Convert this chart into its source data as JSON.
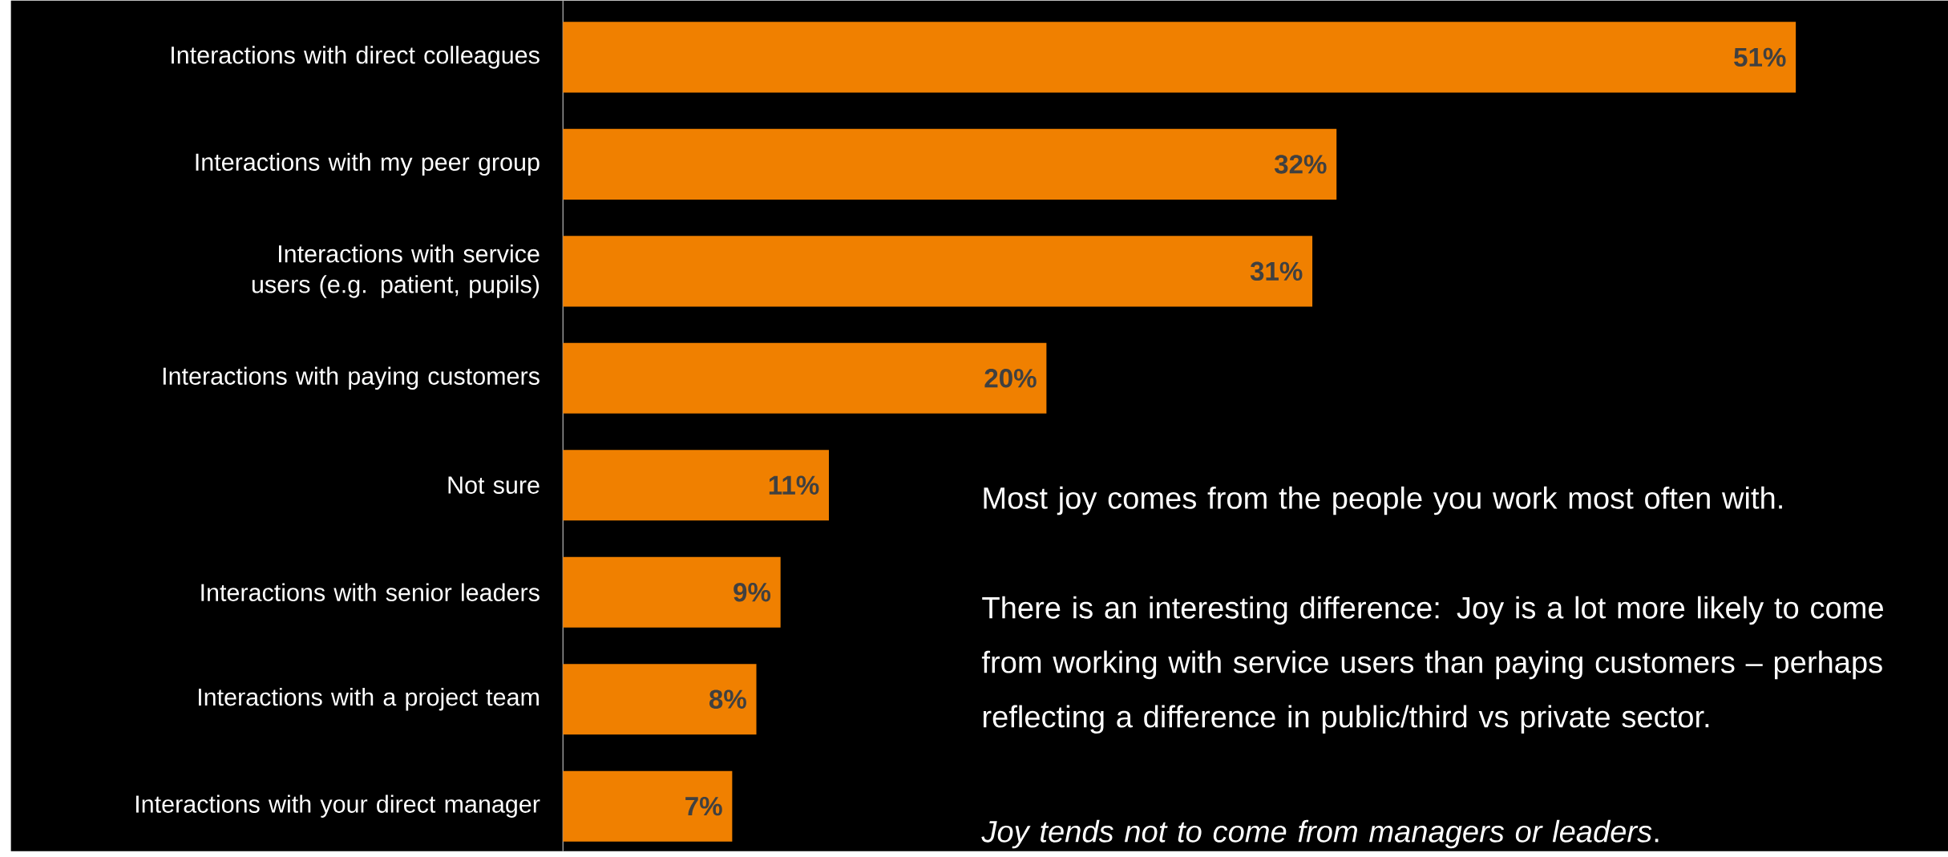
{
  "chart_data": {
    "type": "bar",
    "orientation": "horizontal",
    "categories": [
      "Interactions with direct colleagues",
      "Interactions with my peer group",
      "Interactions with service users (e.g. patient, pupils)",
      "Interactions with paying customers",
      "Not sure",
      "Interactions with senior leaders",
      "Interactions with a project team",
      "Interactions with your direct manager"
    ],
    "values": [
      51,
      32,
      31,
      20,
      11,
      9,
      8,
      7
    ],
    "value_labels": [
      "51%",
      "32%",
      "31%",
      "20%",
      "11%",
      "9%",
      "8%",
      "7%"
    ],
    "color": "#f08000",
    "annotations": [
      "Most joy comes from the people you work most often with.",
      "There is an interesting difference: Joy is a lot more likely to come from working with service users than paying customers – perhaps reflecting a difference in public/third vs private sector.",
      "*Joy tends not to come from managers or leaders*."
    ]
  }
}
